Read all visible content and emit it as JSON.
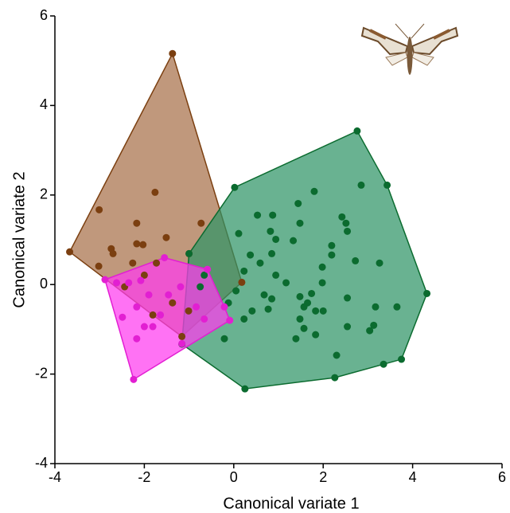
{
  "chart_data": {
    "type": "scatter",
    "xlabel": "Canonical variate 1",
    "ylabel": "Canonical variate 2",
    "xlim": [
      -4,
      6
    ],
    "ylim": [
      -4,
      6
    ],
    "xticks": [
      -4,
      -2,
      0,
      2,
      4,
      6
    ],
    "yticks": [
      -4,
      -2,
      0,
      2,
      4,
      6
    ],
    "hulls": true,
    "series": [
      {
        "color": "#7b3f10",
        "fill": "#a8704a",
        "x": [
          -1.37,
          -3.67,
          -3.01,
          -1.76,
          -2.17,
          -2.74,
          -2.7,
          -3.02,
          -2.17,
          -2.03,
          -1.51,
          -0.73,
          -1.0,
          -1.73,
          -2.26,
          0.18,
          -1.16,
          -1.81,
          -2.44,
          -2.0,
          -1.37,
          -1.01
        ],
        "values": [
          5.16,
          0.73,
          1.67,
          2.06,
          1.37,
          0.8,
          0.69,
          0.41,
          0.91,
          0.89,
          1.05,
          1.37,
          0.69,
          0.48,
          0.48,
          0.05,
          -1.16,
          -0.68,
          -0.05,
          0.21,
          -0.41,
          -0.59
        ]
      },
      {
        "color": "#0b6b2f",
        "fill": "#2f9466",
        "x": [
          0.02,
          2.76,
          3.43,
          4.32,
          3.75,
          3.35,
          2.26,
          0.25,
          -1.16,
          -1.0,
          0.11,
          0.53,
          0.87,
          0.82,
          0.94,
          0.85,
          0.59,
          0.37,
          0.23,
          1.33,
          1.44,
          1.8,
          1.48,
          2.19,
          2.19,
          1.98,
          2.42,
          2.51,
          2.54,
          2.85,
          2.72,
          3.26,
          2.54,
          3.17,
          3.65,
          3.13,
          3.04,
          2.54,
          2.3,
          1.98,
          1.74,
          1.83,
          2.0,
          1.65,
          1.48,
          1.57,
          1.48,
          1.57,
          1.39,
          1.83,
          1.17,
          0.85,
          0.77,
          0.41,
          0.23,
          -0.21,
          -0.12,
          0.05,
          -0.75,
          -0.66,
          0.94,
          0.68
        ],
        "values": [
          2.17,
          3.43,
          2.22,
          -0.2,
          -1.67,
          -1.78,
          -2.08,
          -2.33,
          -1.33,
          0.69,
          1.14,
          1.55,
          1.55,
          1.19,
          1.01,
          0.69,
          0.48,
          0.66,
          0.3,
          0.98,
          1.81,
          2.08,
          1.37,
          0.87,
          0.66,
          0.39,
          1.51,
          1.37,
          1.19,
          2.22,
          0.53,
          0.48,
          -0.3,
          -0.5,
          -0.5,
          -0.91,
          -1.03,
          -0.94,
          -1.58,
          0.04,
          -0.2,
          -0.59,
          -0.59,
          -0.41,
          -0.27,
          -0.5,
          -0.77,
          -0.98,
          -1.21,
          -1.12,
          0.04,
          -0.32,
          -0.55,
          -0.59,
          -0.77,
          -1.21,
          -0.41,
          -0.14,
          -0.05,
          0.21,
          0.21,
          -0.23
        ]
      },
      {
        "color": "#e21fd2",
        "fill": "#ff3cf0",
        "x": [
          -2.88,
          -1.55,
          -0.59,
          -0.09,
          -1.16,
          -2.24,
          -2.49,
          -2.35,
          -2.08,
          -1.9,
          -2.17,
          -2.0,
          -2.17,
          -1.46,
          -1.19,
          -0.84,
          -0.66,
          -1.64,
          -0.21,
          -2.62,
          -1.81
        ],
        "values": [
          0.11,
          0.6,
          0.34,
          -0.8,
          -1.32,
          -2.12,
          -0.73,
          0.04,
          0.09,
          -0.23,
          -0.5,
          -0.94,
          -1.21,
          -0.23,
          -0.05,
          -0.5,
          -0.77,
          -0.68,
          -0.5,
          0.04,
          -0.94
        ]
      }
    ]
  }
}
